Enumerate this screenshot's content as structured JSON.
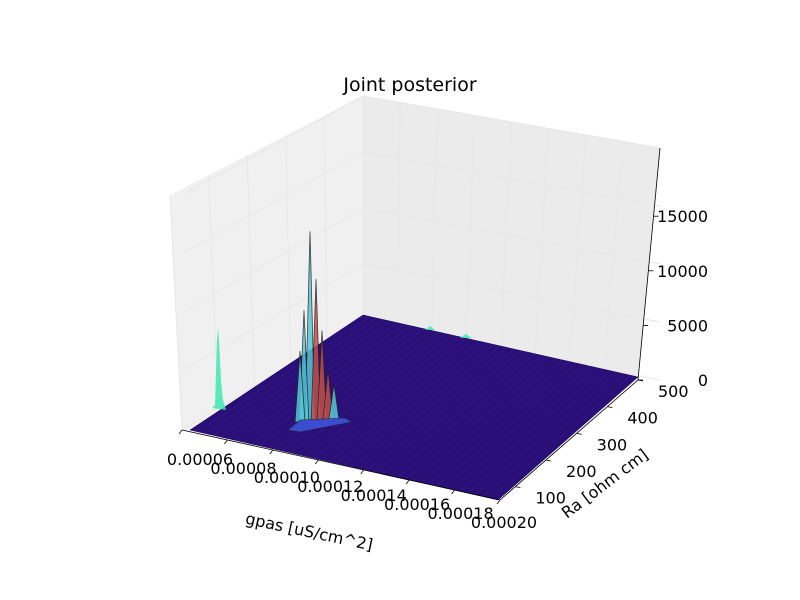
{
  "chart_data": {
    "type": "surface3d",
    "title": "Joint posterior",
    "xlabel": "gpas [uS/cm^2]",
    "ylabel": "Ra [ohm cm]",
    "zlabel": "",
    "x_ticks": [
      "0.00006",
      "0.00008",
      "0.00010",
      "0.00012",
      "0.00014",
      "0.00016",
      "0.00018",
      "0.00020"
    ],
    "y_ticks": [
      "100",
      "200",
      "300",
      "400",
      "500"
    ],
    "z_ticks": [
      "0",
      "5000",
      "10000",
      "15000"
    ],
    "xlim": [
      6e-05,
      0.0002
    ],
    "ylim": [
      50,
      500
    ],
    "zlim": [
      0,
      19000
    ],
    "surface_color": "#2a0f78",
    "peak_location": {
      "gpas": 9.3e-05,
      "Ra": 60
    },
    "peak_heights": [
      18000,
      13500,
      10500,
      8500,
      6500,
      4800,
      3200
    ],
    "side_projection_color": "#3fe8b0"
  }
}
